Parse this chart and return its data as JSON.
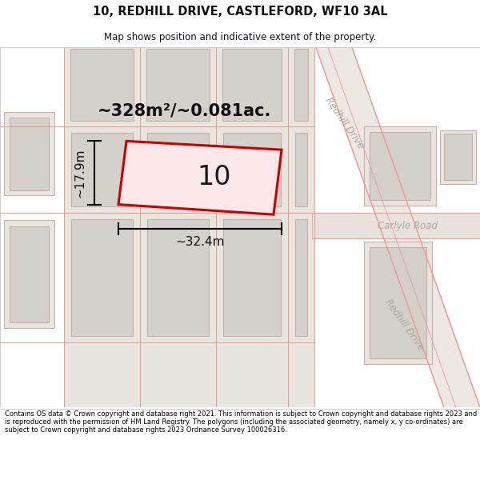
{
  "title": "10, REDHILL DRIVE, CASTLEFORD, WF10 3AL",
  "subtitle": "Map shows position and indicative extent of the property.",
  "footer": "Contains OS data © Crown copyright and database right 2021. This information is subject to Crown copyright and database rights 2023 and is reproduced with the permission of HM Land Registry. The polygons (including the associated geometry, namely x, y co-ordinates) are subject to Crown copyright and database rights 2023 Ordnance Survey 100026316.",
  "area_text": "~328m²/~0.081ac.",
  "house_number": "10",
  "width_label": "~32.4m",
  "height_label": "~17.9m",
  "street1": "Redhill Drive",
  "street2": "Carlyle Road",
  "street3": "Redhill Drive",
  "bg_map": "#f2f0ec",
  "plot_bg": "#e8e4de",
  "bld_fill": "#d4d0ca",
  "bld_edge": "#c8a8a8",
  "road_fill": "#e8e2da",
  "highlight_fill": "#fce8e8",
  "highlight_edge": "#cc0000",
  "street_color": "#aaa89e",
  "pink_line": "#e89898"
}
